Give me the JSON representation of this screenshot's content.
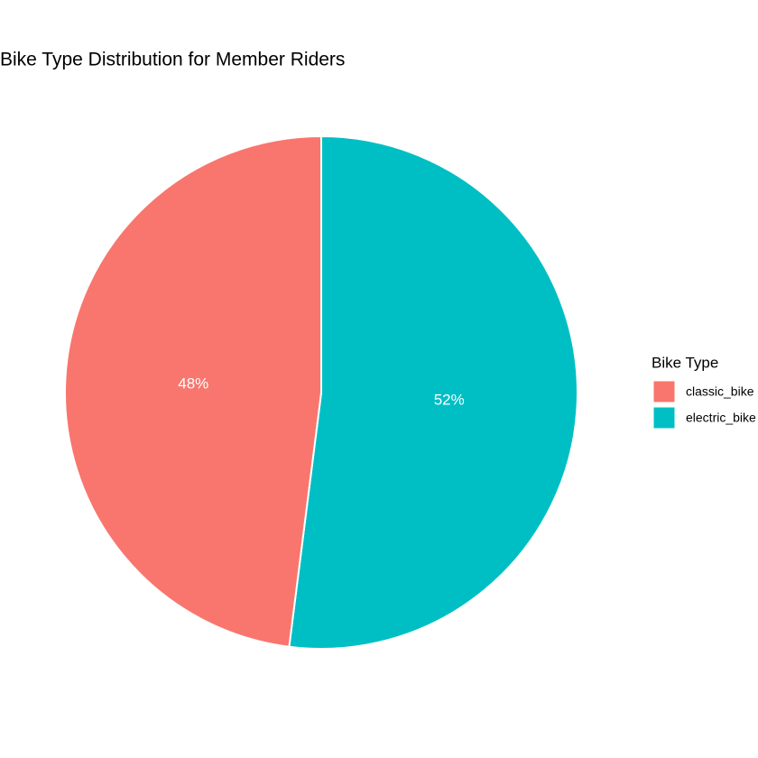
{
  "chart_data": {
    "type": "pie",
    "title": "Bike Type Distribution for Member Riders",
    "categories": [
      "classic_bike",
      "electric_bike"
    ],
    "values": [
      48,
      52
    ],
    "value_labels": [
      "48%",
      "52%"
    ],
    "colors": [
      "#F8766D",
      "#00BFC4"
    ],
    "legend_title": "Bike Type",
    "legend": "right"
  }
}
